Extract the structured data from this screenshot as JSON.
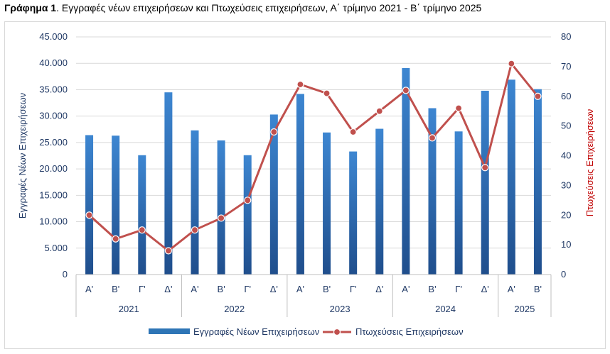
{
  "title": {
    "bold": "Γράφημα 1",
    "rest": ". Εγγραφές νέων επιχειρήσεων και Πτωχεύσεις επιχειρήσεων, Α΄ τρίμηνο 2021 - Β΄ τρίμηνο 2025"
  },
  "chart_data": {
    "type": "bar",
    "quarters": [
      "Α'",
      "Β'",
      "Γ'",
      "Δ'",
      "Α'",
      "Β'",
      "Γ'",
      "Δ'",
      "Α'",
      "Β'",
      "Γ'",
      "Δ'",
      "Α'",
      "Β'",
      "Γ'",
      "Δ'",
      "Α'",
      "Β'"
    ],
    "years": [
      {
        "label": "2021",
        "count": 4
      },
      {
        "label": "2022",
        "count": 4
      },
      {
        "label": "2023",
        "count": 4
      },
      {
        "label": "2024",
        "count": 4
      },
      {
        "label": "2025",
        "count": 2
      }
    ],
    "ylabel_left": "Εγγραφές Νέων Επιχειρήσεων",
    "ylabel_right": "Πτωχεύσεις Επιχειρήσεων",
    "ylim_left": [
      0,
      45000
    ],
    "ylim_right": [
      0,
      80
    ],
    "yticks_left": [
      "0",
      "5.000",
      "10.000",
      "15.000",
      "20.000",
      "25.000",
      "30.000",
      "35.000",
      "40.000",
      "45.000"
    ],
    "yticks_right": [
      "0",
      "10",
      "20",
      "30",
      "40",
      "50",
      "60",
      "70",
      "80"
    ],
    "series": [
      {
        "name": "Εγγραφές Νέων Επιχειρήσεων",
        "kind": "bar",
        "axis": "left",
        "color": "#2e75b6",
        "values": [
          26400,
          26300,
          22600,
          34500,
          27300,
          25400,
          22600,
          30300,
          34200,
          26900,
          23300,
          27600,
          39100,
          31500,
          27100,
          34800,
          36900,
          35100
        ]
      },
      {
        "name": "Πτωχεύσεις Επιχειρήσεων",
        "kind": "line",
        "axis": "right",
        "color": "#c0504d",
        "values": [
          20,
          12,
          15,
          8,
          15,
          19,
          25,
          48,
          64,
          61,
          48,
          55,
          62,
          46,
          56,
          36,
          71,
          60
        ]
      }
    ],
    "legend_position": "bottom",
    "grid": true
  }
}
